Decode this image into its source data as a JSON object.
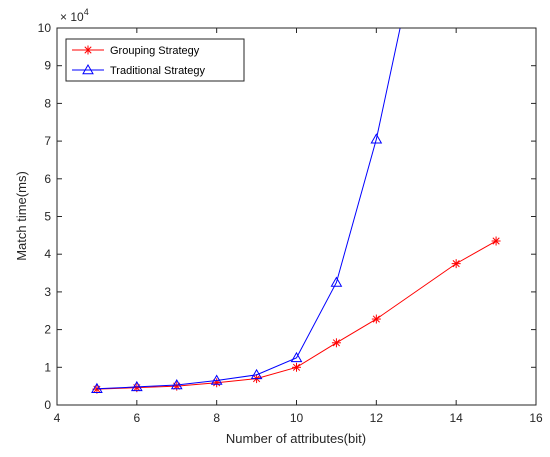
{
  "chart_data": {
    "type": "line",
    "title": "",
    "xlabel": "Number of attributes(bit)",
    "ylabel": "Match time(ms)",
    "y_exponent_label": "× 10",
    "y_exponent_power": "4",
    "xlim": [
      4,
      16
    ],
    "ylim": [
      0,
      10
    ],
    "y_scale_factor": 10000,
    "xticks": [
      4,
      6,
      8,
      10,
      12,
      14,
      16
    ],
    "yticks": [
      0,
      1,
      2,
      3,
      4,
      5,
      6,
      7,
      8,
      9,
      10
    ],
    "grid": false,
    "legend_position": "top-left",
    "series": [
      {
        "name": "Grouping Strategy",
        "color": "#ff0000",
        "marker": "asterisk",
        "x": [
          5,
          6,
          7,
          8,
          9,
          10,
          11,
          12,
          14,
          15
        ],
        "y": [
          0.42,
          0.46,
          0.5,
          0.59,
          0.7,
          1.0,
          1.65,
          2.28,
          3.75,
          4.35
        ]
      },
      {
        "name": "Traditional Strategy",
        "color": "#0000ff",
        "marker": "triangle",
        "x": [
          5,
          6,
          7,
          8,
          9,
          10,
          11,
          12,
          13
        ],
        "y": [
          0.43,
          0.48,
          0.53,
          0.65,
          0.8,
          1.25,
          3.25,
          7.05,
          12.0
        ]
      }
    ]
  }
}
